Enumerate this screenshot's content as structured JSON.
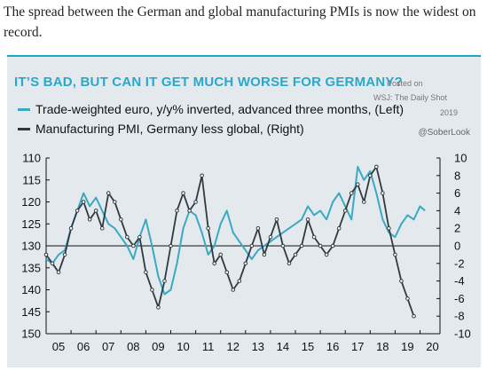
{
  "intro_text": "The spread between the German and global manufacturing PMIs is now the widest on record.",
  "source": {
    "line1": "Posted on",
    "line2": "WSJ: The Daily Shot",
    "line3": "2019",
    "handle": "@SoberLook"
  },
  "colors": {
    "euro": "#3aa9c2",
    "pmi": "#2f3a40",
    "title": "#29a9c9",
    "panel": "#e4e9ee"
  },
  "chart_data": {
    "type": "line",
    "title": "IT’S BAD, BUT CAN IT GET MUCH WORSE FOR GERMANY?",
    "left_axis": {
      "ticks": [
        110,
        115,
        120,
        125,
        130,
        135,
        140,
        145,
        150
      ],
      "range": [
        110,
        150
      ],
      "inverted": true
    },
    "right_axis": {
      "ticks": [
        10,
        8,
        6,
        4,
        2,
        0,
        -2,
        -4,
        -6,
        -8,
        -10
      ],
      "range": [
        -10,
        10
      ]
    },
    "x_ticks": [
      "05",
      "06",
      "07",
      "08",
      "09",
      "10",
      "11",
      "12",
      "13",
      "14",
      "15",
      "16",
      "17",
      "18",
      "19",
      "20"
    ],
    "series": [
      {
        "name": "Trade-weighted euro, y/y% inverted, advanced three months, (Left)",
        "axis": "left",
        "x": [
          2005.0,
          2005.25,
          2005.5,
          2005.75,
          2006.0,
          2006.25,
          2006.5,
          2006.75,
          2007.0,
          2007.25,
          2007.5,
          2007.75,
          2008.0,
          2008.25,
          2008.5,
          2008.75,
          2009.0,
          2009.25,
          2009.5,
          2009.75,
          2010.0,
          2010.25,
          2010.5,
          2010.75,
          2011.0,
          2011.25,
          2011.5,
          2011.75,
          2012.0,
          2012.25,
          2012.5,
          2012.75,
          2013.0,
          2013.25,
          2013.5,
          2013.75,
          2014.0,
          2014.25,
          2014.5,
          2014.75,
          2015.0,
          2015.25,
          2015.5,
          2015.75,
          2016.0,
          2016.25,
          2016.5,
          2016.75,
          2017.0,
          2017.25,
          2017.5,
          2017.75,
          2018.0,
          2018.25,
          2018.5,
          2018.75,
          2019.0,
          2019.25,
          2019.5,
          2019.75,
          2020.0,
          2020.2
        ],
        "values": [
          133,
          134,
          132,
          131,
          126,
          122,
          118,
          121,
          119,
          122,
          125,
          126,
          128,
          130,
          133,
          128,
          124,
          130,
          137,
          141,
          140,
          134,
          126,
          122,
          123,
          127,
          132,
          130,
          125,
          122,
          127,
          129,
          131,
          133,
          131,
          130,
          129,
          128,
          127,
          126,
          125,
          124,
          121,
          123,
          122,
          124,
          120,
          118,
          121,
          124,
          112,
          115,
          113,
          118,
          124,
          127,
          128,
          125,
          123,
          124,
          121,
          122
        ]
      },
      {
        "name": "Manufacturing PMI, Germany less global, (Right)",
        "axis": "right",
        "x": [
          2005.0,
          2005.25,
          2005.5,
          2005.75,
          2006.0,
          2006.25,
          2006.5,
          2006.75,
          2007.0,
          2007.25,
          2007.5,
          2007.75,
          2008.0,
          2008.25,
          2008.5,
          2008.75,
          2009.0,
          2009.25,
          2009.5,
          2009.75,
          2010.0,
          2010.25,
          2010.5,
          2010.75,
          2011.0,
          2011.25,
          2011.5,
          2011.75,
          2012.0,
          2012.25,
          2012.5,
          2012.75,
          2013.0,
          2013.25,
          2013.5,
          2013.75,
          2014.0,
          2014.25,
          2014.5,
          2014.75,
          2015.0,
          2015.25,
          2015.5,
          2015.75,
          2016.0,
          2016.25,
          2016.5,
          2016.75,
          2017.0,
          2017.25,
          2017.5,
          2017.75,
          2018.0,
          2018.25,
          2018.5,
          2018.75,
          2019.0,
          2019.25,
          2019.5,
          2019.75
        ],
        "values": [
          -1,
          -2,
          -3,
          -1,
          2,
          4,
          5,
          3,
          4,
          2,
          6,
          5,
          3,
          1,
          0,
          1,
          -3,
          -5,
          -7,
          -4,
          0,
          4,
          6,
          4,
          5,
          8,
          2,
          -2,
          -1,
          -3,
          -5,
          -4,
          -2,
          0,
          2,
          -1,
          1,
          3,
          0,
          -2,
          -1,
          0,
          3,
          1,
          0,
          -1,
          0,
          2,
          4,
          6,
          7,
          5,
          8,
          9,
          6,
          2,
          -1,
          -4,
          -6,
          -8
        ]
      }
    ]
  }
}
